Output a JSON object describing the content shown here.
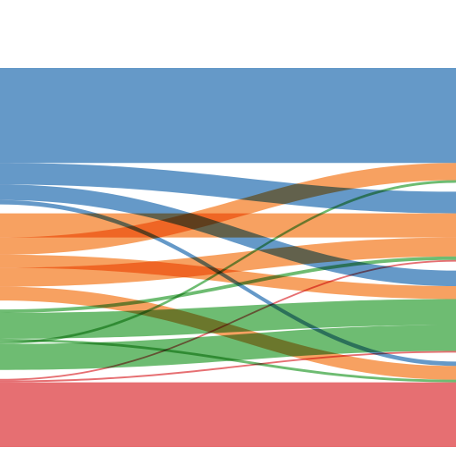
{
  "chart_data": {
    "type": "sankey",
    "title": "",
    "source_groups": [
      {
        "id": "blue",
        "color": "#3f7fba"
      },
      {
        "id": "orange",
        "color": "#f58a3a"
      },
      {
        "id": "green",
        "color": "#4aab4f"
      },
      {
        "id": "red",
        "color": "#e04b4f"
      }
    ],
    "target_groups": [
      "blue",
      "orange",
      "green",
      "red"
    ],
    "flows": [
      {
        "source": "blue",
        "target": "blue",
        "value": 110
      },
      {
        "source": "blue",
        "target": "orange",
        "value": 25
      },
      {
        "source": "blue",
        "target": "green",
        "value": 18
      },
      {
        "source": "blue",
        "target": "red",
        "value": 5
      },
      {
        "source": "orange",
        "target": "orange",
        "value": 28
      },
      {
        "source": "orange",
        "target": "blue",
        "value": 20
      },
      {
        "source": "orange",
        "target": "green",
        "value": 15
      },
      {
        "source": "orange",
        "target": "orange",
        "value": 22
      },
      {
        "source": "orange",
        "target": "red",
        "value": 16
      },
      {
        "source": "green",
        "target": "orange",
        "value": 4
      },
      {
        "source": "green",
        "target": "green",
        "value": 30
      },
      {
        "source": "green",
        "target": "red",
        "value": 3
      },
      {
        "source": "green",
        "target": "blue",
        "value": 3
      },
      {
        "source": "green",
        "target": "green",
        "value": 30
      },
      {
        "source": "red",
        "target": "orange",
        "value": 2
      },
      {
        "source": "red",
        "target": "green",
        "value": 2
      },
      {
        "source": "red",
        "target": "red",
        "value": 75
      }
    ]
  }
}
